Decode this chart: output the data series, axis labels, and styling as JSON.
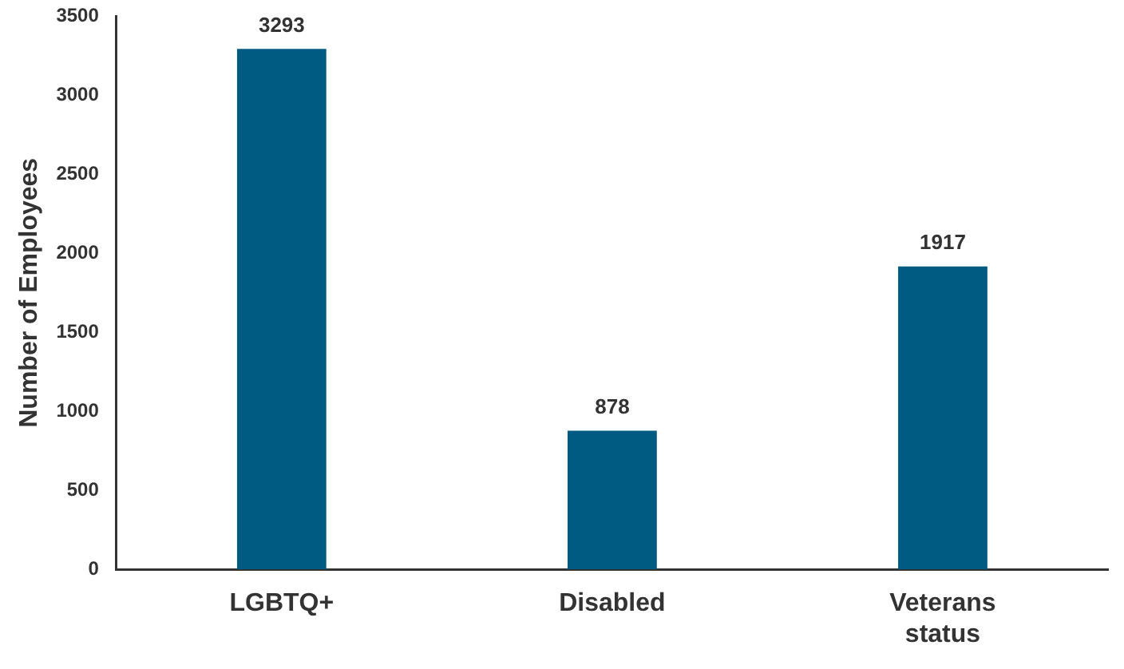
{
  "chart_data": {
    "type": "bar",
    "ylabel": "Number of Employees",
    "categories": [
      "LGBTQ+",
      "Disabled",
      "Veterans status"
    ],
    "values": [
      3293,
      878,
      1917
    ],
    "color": "#005b82",
    "ylim": [
      0,
      3500
    ],
    "yticks": [
      0,
      500,
      1000,
      1500,
      2000,
      2500,
      3000,
      3500
    ],
    "data_labels": true
  }
}
